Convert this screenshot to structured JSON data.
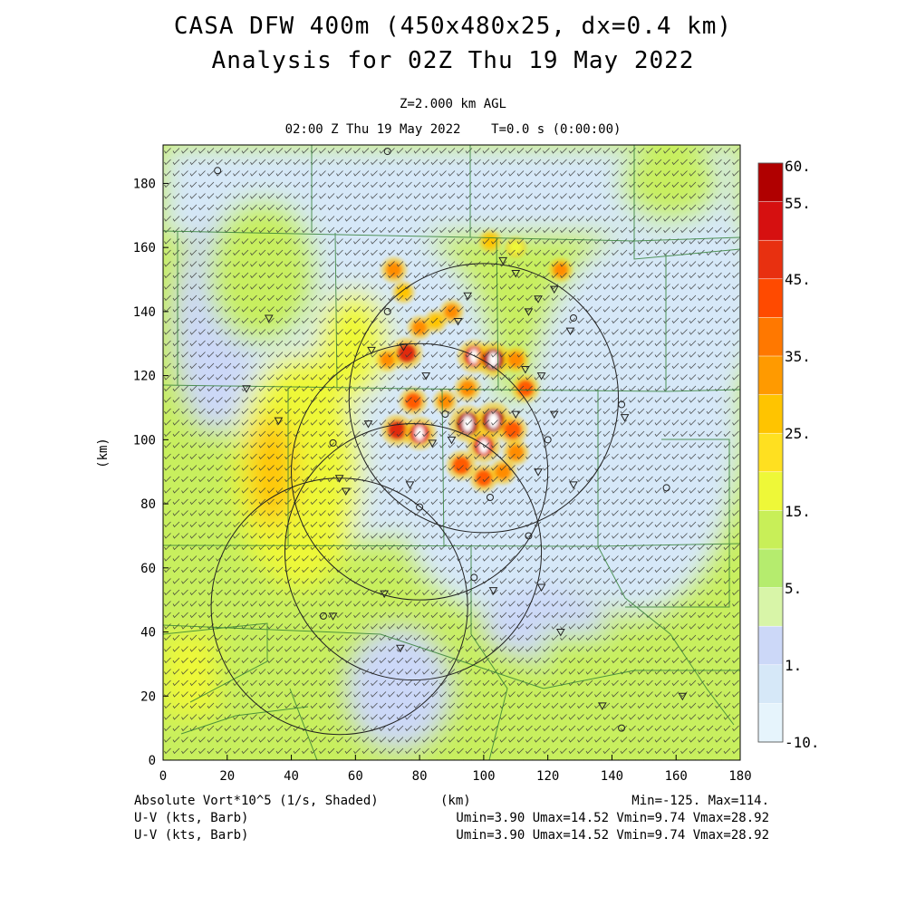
{
  "title": "CASA DFW 400m (450x480x25, dx=0.4 km)",
  "subtitle": "Analysis for 02Z Thu 19 May 2022",
  "level_label": "Z=2.000 km AGL",
  "time_label": "02:00 Z Thu 19 May 2022    T=0.0 s (0:00:00)",
  "footer": {
    "field_label": "Absolute Vort*10^5 (1/s, Shaded)",
    "barb_label_1": "U-V (kts, Barb)",
    "barb_label_2": "U-V (kts, Barb)",
    "xunit": "(km)",
    "minmax": "Min=-125. Max=114.",
    "uv_stats_1": "Umin=3.90 Umax=14.52 Vmin=9.74 Vmax=28.92",
    "uv_stats_2": "Umin=3.90 Umax=14.52 Vmin=9.74 Vmax=28.92"
  },
  "chart_data": {
    "type": "heatmap",
    "xlabel": "",
    "ylabel": "(km)",
    "xlim": [
      0,
      180
    ],
    "ylim": [
      0,
      192
    ],
    "xticks": [
      "0",
      "20",
      "40",
      "60",
      "80",
      "100",
      "120",
      "140",
      "160",
      "180"
    ],
    "yticks": [
      "0",
      "20",
      "40",
      "60",
      "80",
      "100",
      "120",
      "140",
      "160",
      "180"
    ],
    "colorbar": {
      "labels": [
        "60.",
        "55.",
        "45.",
        "35.",
        "25.",
        "15.",
        "5.",
        "1.",
        "-10."
      ],
      "colors": [
        "#b00000",
        "#d61010",
        "#e83010",
        "#ff4a00",
        "#ff7800",
        "#ff9a00",
        "#ffc400",
        "#ffe020",
        "#eef838",
        "#c8ef58",
        "#b5ec6e",
        "#d8f5a8",
        "#ccd8f8",
        "#d6e8f8",
        "#e6f4fc"
      ]
    },
    "barbs": {
      "u_range_kts": [
        3.9,
        14.52
      ],
      "v_range_kts": [
        9.74,
        28.92
      ]
    },
    "radar_rings": [
      {
        "x": 100,
        "y": 113,
        "r": 42
      },
      {
        "x": 80,
        "y": 90,
        "r": 40
      },
      {
        "x": 78,
        "y": 65,
        "r": 40
      },
      {
        "x": 55,
        "y": 48,
        "r": 40
      }
    ],
    "storm_cells": [
      {
        "x": 72,
        "y": 153,
        "v": 30
      },
      {
        "x": 75,
        "y": 146,
        "v": 20
      },
      {
        "x": 80,
        "y": 135,
        "v": 25
      },
      {
        "x": 85,
        "y": 137,
        "v": 20
      },
      {
        "x": 70,
        "y": 125,
        "v": 25
      },
      {
        "x": 76,
        "y": 127,
        "v": 45
      },
      {
        "x": 90,
        "y": 140,
        "v": 25
      },
      {
        "x": 97,
        "y": 126,
        "v": 50
      },
      {
        "x": 103,
        "y": 125,
        "v": 55
      },
      {
        "x": 110,
        "y": 125,
        "v": 30
      },
      {
        "x": 113,
        "y": 116,
        "v": 35
      },
      {
        "x": 95,
        "y": 116,
        "v": 30
      },
      {
        "x": 88,
        "y": 112,
        "v": 25
      },
      {
        "x": 78,
        "y": 112,
        "v": 35
      },
      {
        "x": 73,
        "y": 103,
        "v": 45
      },
      {
        "x": 80,
        "y": 102,
        "v": 50
      },
      {
        "x": 95,
        "y": 105,
        "v": 60
      },
      {
        "x": 103,
        "y": 106,
        "v": 60
      },
      {
        "x": 109,
        "y": 103,
        "v": 40
      },
      {
        "x": 100,
        "y": 98,
        "v": 50
      },
      {
        "x": 110,
        "y": 96,
        "v": 30
      },
      {
        "x": 93,
        "y": 92,
        "v": 40
      },
      {
        "x": 100,
        "y": 88,
        "v": 35
      },
      {
        "x": 106,
        "y": 90,
        "v": 30
      },
      {
        "x": 124,
        "y": 153,
        "v": 25
      },
      {
        "x": 102,
        "y": 162,
        "v": 20
      },
      {
        "x": 110,
        "y": 160,
        "v": 15
      }
    ],
    "sites": [
      {
        "x": 17,
        "y": 184,
        "sym": "o"
      },
      {
        "x": 70,
        "y": 190,
        "sym": "o"
      },
      {
        "x": 33,
        "y": 138,
        "sym": "v"
      },
      {
        "x": 26,
        "y": 116,
        "sym": "v"
      },
      {
        "x": 36,
        "y": 106,
        "sym": "v"
      },
      {
        "x": 53,
        "y": 99,
        "sym": "o"
      },
      {
        "x": 55,
        "y": 88,
        "sym": "v"
      },
      {
        "x": 57,
        "y": 84,
        "sym": "v"
      },
      {
        "x": 64,
        "y": 105,
        "sym": "v"
      },
      {
        "x": 65,
        "y": 128,
        "sym": "v"
      },
      {
        "x": 70,
        "y": 140,
        "sym": "o"
      },
      {
        "x": 75,
        "y": 129,
        "sym": "v"
      },
      {
        "x": 82,
        "y": 120,
        "sym": "v"
      },
      {
        "x": 88,
        "y": 108,
        "sym": "o"
      },
      {
        "x": 84,
        "y": 99,
        "sym": "v"
      },
      {
        "x": 90,
        "y": 100,
        "sym": "v"
      },
      {
        "x": 92,
        "y": 137,
        "sym": "v"
      },
      {
        "x": 95,
        "y": 145,
        "sym": "v"
      },
      {
        "x": 110,
        "y": 152,
        "sym": "v"
      },
      {
        "x": 106,
        "y": 156,
        "sym": "v"
      },
      {
        "x": 114,
        "y": 140,
        "sym": "v"
      },
      {
        "x": 117,
        "y": 144,
        "sym": "v"
      },
      {
        "x": 122,
        "y": 147,
        "sym": "v"
      },
      {
        "x": 128,
        "y": 138,
        "sym": "o"
      },
      {
        "x": 127,
        "y": 134,
        "sym": "v"
      },
      {
        "x": 113,
        "y": 122,
        "sym": "v"
      },
      {
        "x": 118,
        "y": 120,
        "sym": "v"
      },
      {
        "x": 122,
        "y": 108,
        "sym": "v"
      },
      {
        "x": 110,
        "y": 108,
        "sym": "v"
      },
      {
        "x": 120,
        "y": 100,
        "sym": "o"
      },
      {
        "x": 117,
        "y": 90,
        "sym": "v"
      },
      {
        "x": 128,
        "y": 86,
        "sym": "v"
      },
      {
        "x": 102,
        "y": 82,
        "sym": "o"
      },
      {
        "x": 80,
        "y": 79,
        "sym": "o"
      },
      {
        "x": 77,
        "y": 86,
        "sym": "v"
      },
      {
        "x": 114,
        "y": 70,
        "sym": "o"
      },
      {
        "x": 97,
        "y": 57,
        "sym": "o"
      },
      {
        "x": 103,
        "y": 53,
        "sym": "v"
      },
      {
        "x": 118,
        "y": 54,
        "sym": "v"
      },
      {
        "x": 69,
        "y": 52,
        "sym": "v"
      },
      {
        "x": 53,
        "y": 45,
        "sym": "v"
      },
      {
        "x": 50,
        "y": 45,
        "sym": "o"
      },
      {
        "x": 74,
        "y": 35,
        "sym": "v"
      },
      {
        "x": 124,
        "y": 40,
        "sym": "v"
      },
      {
        "x": 137,
        "y": 17,
        "sym": "v"
      },
      {
        "x": 143,
        "y": 10,
        "sym": "o"
      },
      {
        "x": 162,
        "y": 20,
        "sym": "v"
      },
      {
        "x": 157,
        "y": 85,
        "sym": "o"
      },
      {
        "x": 144,
        "y": 107,
        "sym": "v"
      },
      {
        "x": 143,
        "y": 111,
        "sym": "o"
      }
    ]
  }
}
